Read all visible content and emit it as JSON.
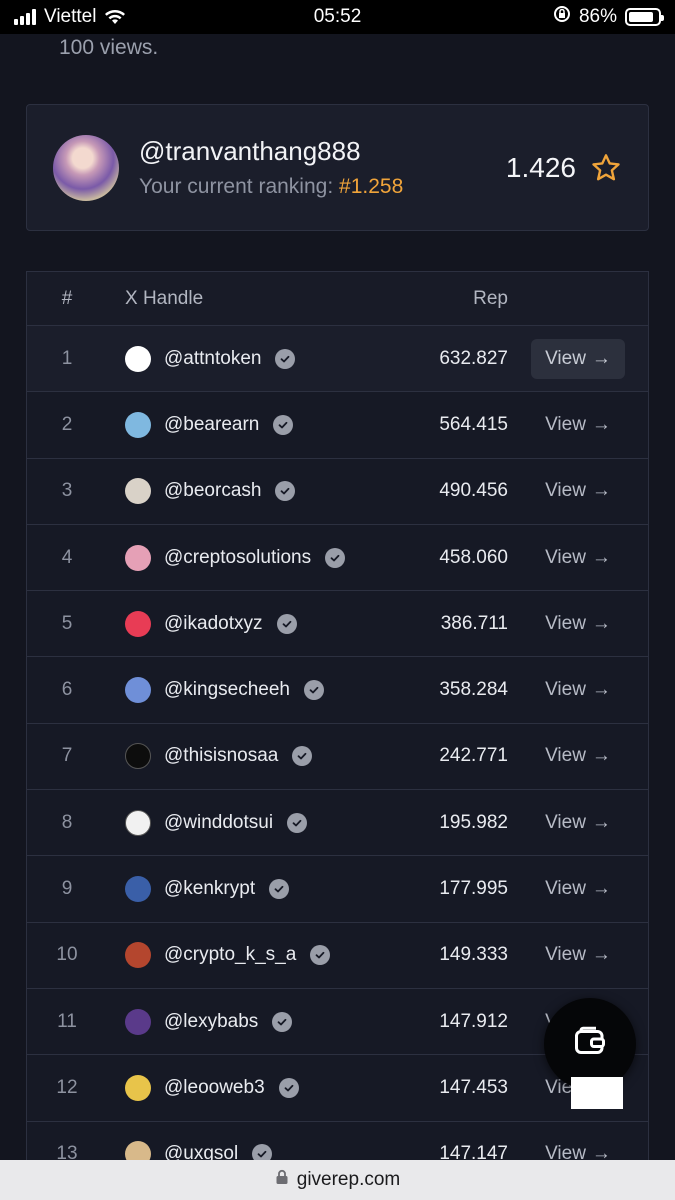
{
  "status_bar": {
    "carrier": "Viettel",
    "time": "05:52",
    "battery": "86%",
    "battery_level": 0.86
  },
  "page": {
    "views_text": "100 views."
  },
  "profile": {
    "handle": "@tranvanthang888",
    "ranking_label": "Your current ranking:",
    "ranking_value": "#1.258",
    "score": "1.426"
  },
  "table": {
    "headers": {
      "num": "#",
      "handle": "X Handle",
      "rep": "Rep"
    },
    "view_label": "View",
    "rows": [
      {
        "rank": "1",
        "handle": "@attntoken",
        "rep": "632.827",
        "avatar_color": "#ffffff"
      },
      {
        "rank": "2",
        "handle": "@bearearn",
        "rep": "564.415",
        "avatar_color": "#7fb8e0"
      },
      {
        "rank": "3",
        "handle": "@beorcash",
        "rep": "490.456",
        "avatar_color": "#d9d2c8"
      },
      {
        "rank": "4",
        "handle": "@creptosolutions",
        "rep": "458.060",
        "avatar_color": "#e5a0b6"
      },
      {
        "rank": "5",
        "handle": "@ikadotxyz",
        "rep": "386.711",
        "avatar_color": "#e83c55"
      },
      {
        "rank": "6",
        "handle": "@kingsecheeh",
        "rep": "358.284",
        "avatar_color": "#6f8fd8"
      },
      {
        "rank": "7",
        "handle": "@thisisnosaa",
        "rep": "242.771",
        "avatar_color": "#0d0d0d"
      },
      {
        "rank": "8",
        "handle": "@winddotsui",
        "rep": "195.982",
        "avatar_color": "#f1f1f1"
      },
      {
        "rank": "9",
        "handle": "@kenkrypt",
        "rep": "177.995",
        "avatar_color": "#3a5fa8"
      },
      {
        "rank": "10",
        "handle": "@crypto_k_s_a",
        "rep": "149.333",
        "avatar_color": "#b4462e"
      },
      {
        "rank": "11",
        "handle": "@lexybabs",
        "rep": "147.912",
        "avatar_color": "#5a3a8a"
      },
      {
        "rank": "12",
        "handle": "@leooweb3",
        "rep": "147.453",
        "avatar_color": "#e8c44a"
      },
      {
        "rank": "13",
        "handle": "@uxgsol",
        "rep": "147.147",
        "avatar_color": "#d8b98a"
      }
    ]
  },
  "url_bar": {
    "domain": "giverep.com"
  },
  "colors": {
    "accent": "#f0a43a",
    "background": "#13151f",
    "card": "#1b1e2b"
  }
}
